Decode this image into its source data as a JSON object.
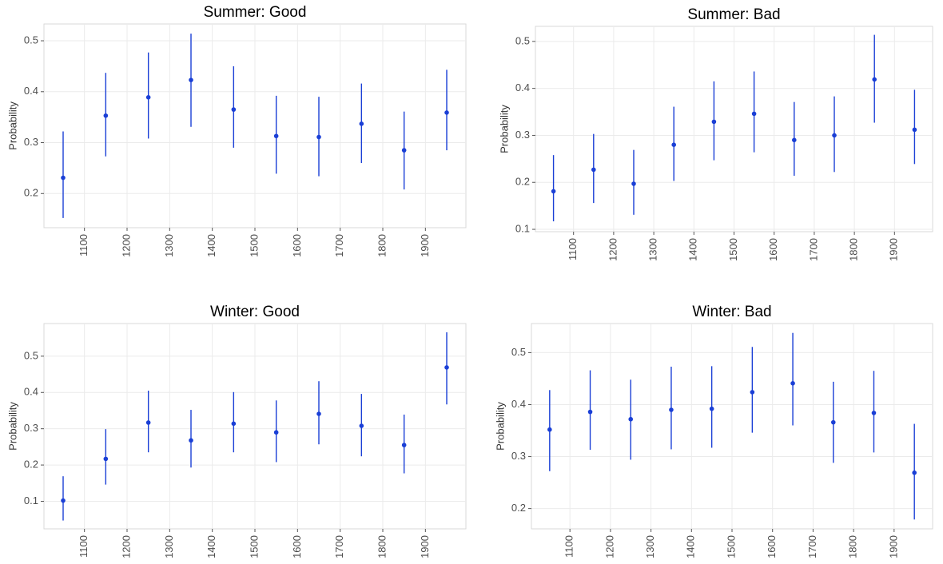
{
  "chart_data": [
    {
      "type": "pointrange",
      "title": "Summer: Good",
      "y_label": "Probability",
      "color": "#1a3fd6",
      "grid": true,
      "x": [
        1050,
        1150,
        1250,
        1350,
        1450,
        1550,
        1650,
        1750,
        1850,
        1950
      ],
      "values": [
        0.231,
        0.353,
        0.389,
        0.423,
        0.365,
        0.313,
        0.311,
        0.337,
        0.285,
        0.359
      ],
      "lower": [
        0.152,
        0.273,
        0.308,
        0.331,
        0.29,
        0.239,
        0.234,
        0.26,
        0.208,
        0.285
      ],
      "upper": [
        0.322,
        0.437,
        0.477,
        0.514,
        0.45,
        0.392,
        0.39,
        0.416,
        0.361,
        0.443
      ],
      "xlim": [
        1005,
        1995
      ],
      "ylim": [
        0.133,
        0.533
      ],
      "xticks": [
        1100,
        1200,
        1300,
        1400,
        1500,
        1600,
        1700,
        1800,
        1900
      ],
      "yticks": [
        0.2,
        0.3,
        0.4,
        0.5
      ]
    },
    {
      "type": "pointrange",
      "title": "Summer: Bad",
      "y_label": "Probability",
      "color": "#1a3fd6",
      "grid": true,
      "x": [
        1050,
        1150,
        1250,
        1350,
        1450,
        1550,
        1650,
        1750,
        1850,
        1950
      ],
      "values": [
        0.181,
        0.227,
        0.197,
        0.28,
        0.329,
        0.346,
        0.29,
        0.3,
        0.419,
        0.312
      ],
      "lower": [
        0.117,
        0.156,
        0.131,
        0.203,
        0.247,
        0.264,
        0.214,
        0.222,
        0.327,
        0.239
      ],
      "upper": [
        0.258,
        0.303,
        0.269,
        0.361,
        0.415,
        0.436,
        0.371,
        0.383,
        0.514,
        0.397
      ],
      "xlim": [
        1005,
        1995
      ],
      "ylim": [
        0.095,
        0.532
      ],
      "xticks": [
        1100,
        1200,
        1300,
        1400,
        1500,
        1600,
        1700,
        1800,
        1900
      ],
      "yticks": [
        0.1,
        0.2,
        0.3,
        0.4,
        0.5
      ]
    },
    {
      "type": "pointrange",
      "title": "Winter: Good",
      "y_label": "Probability",
      "color": "#1a3fd6",
      "grid": true,
      "x": [
        1050,
        1150,
        1250,
        1350,
        1450,
        1550,
        1650,
        1750,
        1850,
        1950
      ],
      "values": [
        0.102,
        0.217,
        0.317,
        0.268,
        0.314,
        0.29,
        0.341,
        0.308,
        0.255,
        0.469
      ],
      "lower": [
        0.047,
        0.146,
        0.235,
        0.193,
        0.235,
        0.208,
        0.257,
        0.224,
        0.177,
        0.367
      ],
      "upper": [
        0.169,
        0.299,
        0.405,
        0.352,
        0.401,
        0.378,
        0.431,
        0.396,
        0.339,
        0.566
      ],
      "xlim": [
        1005,
        1995
      ],
      "ylim": [
        0.024,
        0.59
      ],
      "xticks": [
        1100,
        1200,
        1300,
        1400,
        1500,
        1600,
        1700,
        1800,
        1900
      ],
      "yticks": [
        0.1,
        0.2,
        0.3,
        0.4,
        0.5
      ]
    },
    {
      "type": "pointrange",
      "title": "Winter: Bad",
      "y_label": "Probability",
      "color": "#1a3fd6",
      "grid": true,
      "x": [
        1050,
        1150,
        1250,
        1350,
        1450,
        1550,
        1650,
        1750,
        1850,
        1950
      ],
      "values": [
        0.352,
        0.386,
        0.372,
        0.39,
        0.392,
        0.424,
        0.441,
        0.366,
        0.384,
        0.269
      ],
      "lower": [
        0.272,
        0.313,
        0.294,
        0.314,
        0.317,
        0.346,
        0.36,
        0.288,
        0.308,
        0.179
      ],
      "upper": [
        0.428,
        0.466,
        0.448,
        0.473,
        0.474,
        0.511,
        0.538,
        0.444,
        0.465,
        0.363
      ],
      "xlim": [
        1005,
        1995
      ],
      "ylim": [
        0.161,
        0.556
      ],
      "xticks": [
        1100,
        1200,
        1300,
        1400,
        1500,
        1600,
        1700,
        1800,
        1900
      ],
      "yticks": [
        0.2,
        0.3,
        0.4,
        0.5
      ]
    }
  ]
}
